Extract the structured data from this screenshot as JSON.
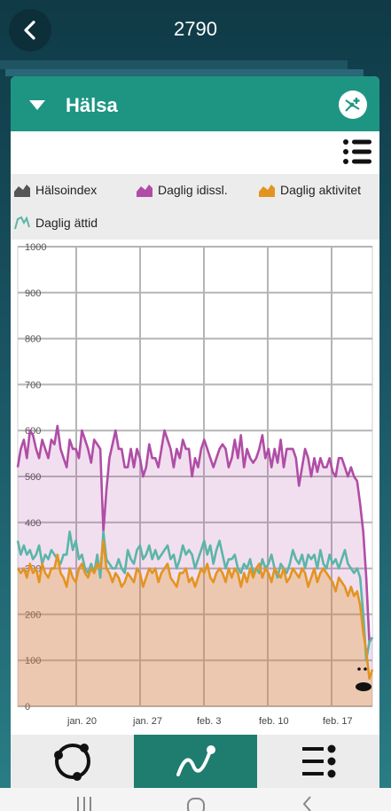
{
  "header": {
    "title": "2790"
  },
  "card": {
    "title": "Hälsa"
  },
  "legend": [
    {
      "label": "Hälsoindex",
      "color": "#555555",
      "icon": "area-icon-dark"
    },
    {
      "label": "Daglig idissl.",
      "color": "#b04da6",
      "icon": "area-icon-magenta"
    },
    {
      "label": "Daglig aktivitet",
      "color": "#e39420",
      "icon": "area-icon-orange"
    },
    {
      "label": "Daglig ättid",
      "color": "#5bb5a8",
      "icon": "line-icon-teal"
    }
  ],
  "chart_data": {
    "type": "area",
    "ylim": [
      0,
      1000
    ],
    "y_ticks": [
      "0",
      "100",
      "200",
      "300",
      "400",
      "500",
      "600",
      "700",
      "800",
      "900",
      "1000"
    ],
    "x_ticks": [
      "jan. 20",
      "jan. 27",
      "feb. 3",
      "feb. 10",
      "feb. 17"
    ],
    "grid": true,
    "series": [
      {
        "name": "Daglig idissl.",
        "color": "#b04da6",
        "values": [
          520,
          560,
          580,
          540,
          600,
          590,
          560,
          540,
          580,
          560,
          540,
          580,
          570,
          610,
          560,
          540,
          520,
          580,
          560,
          560,
          540,
          600,
          580,
          560,
          530,
          580,
          570,
          560,
          380,
          470,
          540,
          570,
          600,
          560,
          560,
          520,
          520,
          560,
          520,
          560,
          540,
          500,
          520,
          570,
          540,
          540,
          520,
          560,
          600,
          580,
          560,
          520,
          560,
          540,
          580,
          560,
          560,
          500,
          540,
          520,
          560,
          580,
          560,
          540,
          520,
          540,
          560,
          570,
          560,
          520,
          540,
          580,
          540,
          590,
          520,
          560,
          540,
          530,
          540,
          560,
          590,
          540,
          560,
          520,
          560,
          530,
          580,
          520,
          560,
          560,
          560,
          540,
          480,
          520,
          560,
          540,
          500,
          540,
          510,
          540,
          520,
          520,
          540,
          510,
          500,
          540,
          540,
          520,
          500,
          520,
          500,
          490,
          440,
          380,
          280,
          140,
          150
        ]
      },
      {
        "name": "Daglig ättid",
        "color": "#5bb5a8",
        "values": [
          360,
          330,
          350,
          330,
          340,
          320,
          330,
          350,
          310,
          330,
          320,
          340,
          330,
          320,
          310,
          330,
          330,
          380,
          340,
          360,
          320,
          330,
          300,
          290,
          310,
          290,
          330,
          280,
          380,
          320,
          310,
          300,
          300,
          320,
          300,
          290,
          340,
          320,
          310,
          340,
          350,
          320,
          330,
          350,
          320,
          340,
          320,
          330,
          340,
          350,
          320,
          330,
          300,
          320,
          350,
          330,
          340,
          330,
          300,
          320,
          340,
          360,
          330,
          350,
          310,
          340,
          360,
          330,
          300,
          320,
          320,
          330,
          300,
          290,
          310,
          300,
          320,
          290,
          300,
          290,
          320,
          300,
          310,
          330,
          300,
          280,
          310,
          300,
          290,
          310,
          340,
          320,
          310,
          330,
          300,
          330,
          320,
          330,
          300,
          340,
          310,
          300,
          330,
          310,
          320,
          300,
          320,
          340,
          310,
          300,
          290,
          300,
          280,
          200,
          100,
          140,
          150
        ]
      },
      {
        "name": "Daglig aktivitet",
        "color": "#e39420",
        "values": [
          300,
          290,
          300,
          280,
          310,
          290,
          300,
          270,
          310,
          290,
          280,
          300,
          300,
          330,
          290,
          280,
          260,
          300,
          280,
          270,
          300,
          310,
          290,
          280,
          300,
          290,
          310,
          300,
          360,
          300,
          290,
          270,
          290,
          280,
          260,
          270,
          290,
          280,
          270,
          300,
          290,
          260,
          280,
          300,
          290,
          300,
          270,
          290,
          300,
          310,
          280,
          270,
          260,
          290,
          290,
          300,
          270,
          280,
          260,
          280,
          300,
          290,
          310,
          280,
          270,
          290,
          300,
          290,
          270,
          300,
          280,
          300,
          290,
          260,
          290,
          270,
          300,
          280,
          300,
          310,
          280,
          300,
          290,
          270,
          300,
          290,
          280,
          300,
          270,
          280,
          300,
          290,
          280,
          300,
          290,
          260,
          280,
          300,
          270,
          290,
          300,
          290,
          280,
          270,
          250,
          280,
          270,
          260,
          240,
          260,
          240,
          250,
          220,
          160,
          120,
          60,
          80
        ]
      }
    ]
  },
  "icons": {
    "back": "back-chevron-icon",
    "caret": "caret-down-icon",
    "card_action": "add-branch-icon",
    "list_toggle": "list-icon",
    "cow": "cow-icon",
    "nav_overview": "circle-nodes-icon",
    "nav_chart": "trend-line-icon",
    "nav_list": "list-dots-icon"
  }
}
